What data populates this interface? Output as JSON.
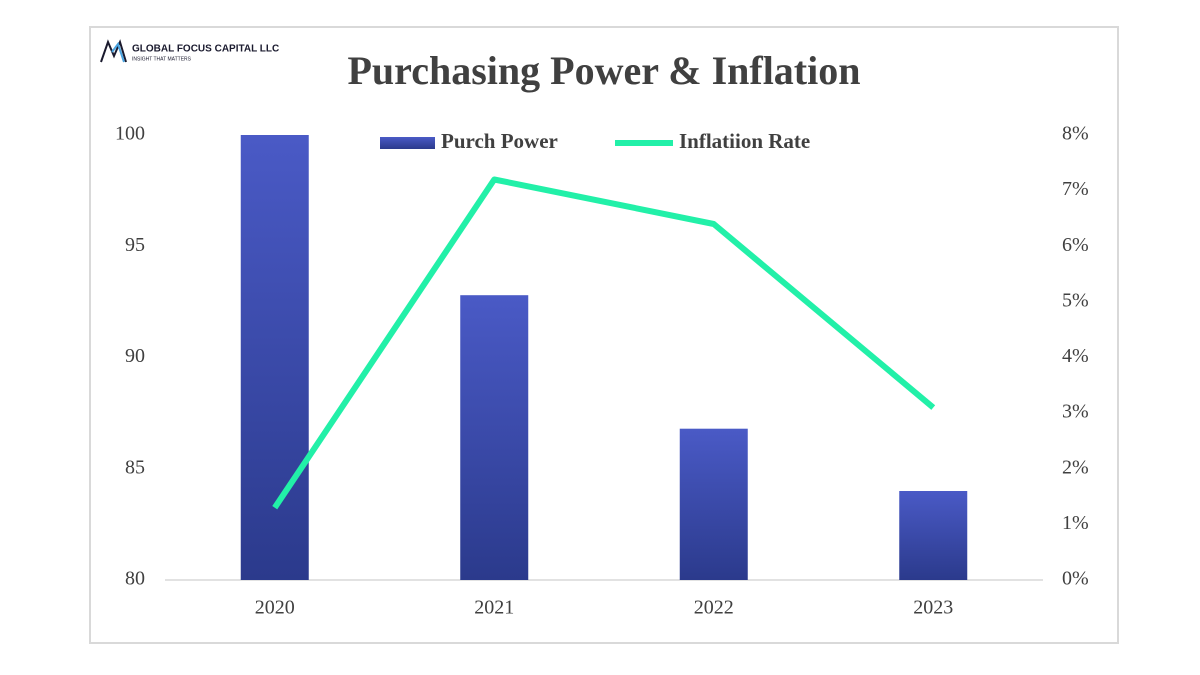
{
  "chart_data": {
    "type": "bar_line",
    "brand": "GLOBAL FOCUS CAPITAL LLC",
    "brand_tagline": "INSIGHT THAT MATTERS",
    "title": "Purchasing Power & Inflation",
    "categories": [
      "2020",
      "2021",
      "2022",
      "2023"
    ],
    "series": [
      {
        "name": "Purch Power",
        "type": "bar",
        "color": "#3f4fb5",
        "values": [
          100,
          92.8,
          86.8,
          84.0
        ]
      },
      {
        "name": "Inflatiion Rate",
        "type": "line",
        "axis": "y2",
        "color": "#22f0a8",
        "values": [
          1.3,
          7.2,
          6.4,
          3.1
        ]
      }
    ],
    "ylim": [
      80,
      100
    ],
    "yticks": [
      80,
      85,
      90,
      95,
      100
    ],
    "y2lim": [
      0,
      8
    ],
    "y2ticks": [
      {
        "value": 0,
        "label": "0%"
      },
      {
        "value": 1,
        "label": "1%"
      },
      {
        "value": 2,
        "label": "2%"
      },
      {
        "value": 3,
        "label": "3%"
      },
      {
        "value": 4,
        "label": "4%"
      },
      {
        "value": 5,
        "label": "5%"
      },
      {
        "value": 6,
        "label": "6%"
      },
      {
        "value": 7,
        "label": "7%"
      },
      {
        "value": 8,
        "label": "8%"
      }
    ],
    "legend": "top",
    "grid": false
  }
}
